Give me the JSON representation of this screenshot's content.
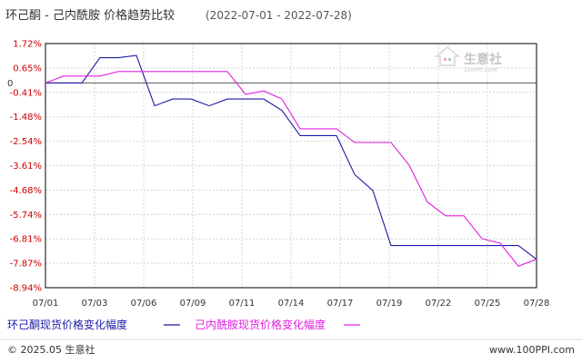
{
  "chart_data": {
    "type": "line",
    "title": "环己酮 - 己内酰胺 价格趋势比较",
    "date_range": "(2022-07-01 - 2022-07-28)",
    "x_ticks": [
      "07/01",
      "07/03",
      "07/06",
      "07/09",
      "07/11",
      "07/14",
      "07/17",
      "07/19",
      "07/22",
      "07/25",
      "07/28"
    ],
    "y_ticks": [
      "1.72%",
      "0.65%",
      "0",
      "-0.41%",
      "-1.48%",
      "-2.54%",
      "-3.61%",
      "-4.68%",
      "-5.74%",
      "-6.81%",
      "-7.87%",
      "-8.94%"
    ],
    "ylim": [
      -8.94,
      1.72
    ],
    "grid": true,
    "series": [
      {
        "name": "环己酮现货价格变化幅度",
        "color": "#1a1aa6",
        "values": [
          0,
          0,
          0,
          1.1,
          1.1,
          1.2,
          -1.0,
          -0.7,
          -0.7,
          -1.0,
          -0.7,
          -0.7,
          -0.7,
          -1.2,
          -2.3,
          -2.3,
          -2.3,
          -4.0,
          -4.7,
          -7.1,
          -7.1,
          -7.1,
          -7.1,
          -7.1,
          -7.1,
          -7.1,
          -7.1,
          -7.7
        ]
      },
      {
        "name": "己内酰胺现货价格变化幅度",
        "color": "#e020e0",
        "values": [
          0,
          0.3,
          0.3,
          0.3,
          0.5,
          0.5,
          0.5,
          0.5,
          0.5,
          0.5,
          0.5,
          -0.5,
          -0.35,
          -0.7,
          -2.0,
          -2.0,
          -2.0,
          -2.6,
          -2.6,
          -2.6,
          -3.6,
          -5.2,
          -5.8,
          -5.8,
          -6.8,
          -7.0,
          -8.0,
          -7.7
        ]
      }
    ]
  },
  "watermark": {
    "brand": "生意社",
    "url": "100PPI.COM"
  },
  "footer": {
    "copyright": "© 2025.05 生意社",
    "website": "www.100PPI.com"
  }
}
